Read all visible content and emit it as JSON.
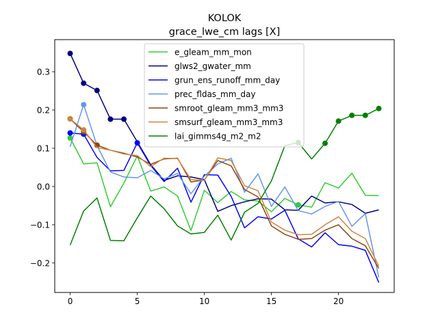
{
  "chart_data": {
    "type": "line",
    "title": "KOLOK",
    "subtitle": "grace_lwe_cm lags [X]",
    "xlabel": "",
    "ylabel": "",
    "xlim": [
      -1.15,
      24.15
    ],
    "ylim": [
      -0.277,
      0.384
    ],
    "xticks": [
      0,
      5,
      10,
      15,
      20
    ],
    "yticks": [
      -0.2,
      -0.1,
      0.0,
      0.1,
      0.2,
      0.3
    ],
    "ytick_labels": [
      "−0.2",
      "−0.1",
      "0.0",
      "0.1",
      "0.2",
      "0.3"
    ],
    "legend_position": "upper center",
    "x": [
      0,
      1,
      2,
      3,
      4,
      5,
      6,
      7,
      8,
      9,
      10,
      11,
      12,
      13,
      14,
      15,
      16,
      17,
      18,
      19,
      20,
      21,
      22,
      23
    ],
    "series": [
      {
        "name": "e_gleam_mm_mon",
        "color": "#32cd32",
        "values": [
          0.127,
          0.059,
          0.062,
          -0.053,
          0.009,
          0.08,
          -0.012,
          -0.001,
          -0.025,
          -0.115,
          -0.01,
          -0.042,
          -0.013,
          -0.035,
          -0.038,
          -0.066,
          -0.031,
          -0.048,
          -0.054,
          0.01,
          -0.004,
          0.035,
          -0.023,
          -0.024
        ],
        "markers": [
          0,
          17
        ]
      },
      {
        "name": "glws2_gwater_mm",
        "color": "#000080",
        "values": [
          0.348,
          0.27,
          0.251,
          0.176,
          0.176,
          0.117,
          0.057,
          0.016,
          0.028,
          0.025,
          0.018,
          -0.065,
          -0.05,
          -0.04,
          -0.032,
          -0.033,
          -0.061,
          -0.062,
          -0.025,
          -0.043,
          -0.04,
          -0.047,
          -0.07,
          -0.061
        ],
        "markers": [
          0,
          1,
          2,
          3,
          4
        ]
      },
      {
        "name": "grun_ens_runoff_mm_day",
        "color": "#0000ff",
        "values": [
          0.14,
          0.137,
          0.076,
          0.041,
          0.042,
          0.114,
          0.055,
          0.013,
          0.048,
          -0.041,
          0.031,
          0.03,
          -0.026,
          -0.108,
          -0.079,
          -0.085,
          -0.062,
          -0.137,
          -0.158,
          -0.121,
          -0.152,
          -0.156,
          -0.167,
          -0.251
        ],
        "markers": [
          0,
          1,
          5
        ]
      },
      {
        "name": "prec_fldas_mm_day",
        "color": "#6495ed",
        "values": [
          0.104,
          0.214,
          0.107,
          0.038,
          0.025,
          0.023,
          0.042,
          0.02,
          0.034,
          -0.019,
          0.027,
          0.059,
          0.074,
          -0.015,
          0.033,
          -0.052,
          -0.001,
          -0.063,
          -0.072,
          -0.052,
          -0.039,
          -0.104,
          -0.071,
          -0.238
        ],
        "markers": [
          1
        ]
      },
      {
        "name": "smroot_gleam_mm3_mm3",
        "color": "#8b4513",
        "values": [
          0.177,
          0.143,
          0.108,
          0.095,
          0.087,
          0.077,
          0.058,
          0.072,
          0.074,
          0.012,
          0.017,
          0.068,
          0.054,
          -0.008,
          -0.027,
          -0.103,
          -0.125,
          -0.138,
          -0.136,
          -0.114,
          -0.1,
          -0.136,
          -0.155,
          -0.214
        ],
        "markers": [
          0,
          1,
          2
        ]
      },
      {
        "name": "smsurf_gleam_mm3_mm3",
        "color": "#cd853f",
        "values": [
          0.177,
          0.148,
          0.102,
          0.095,
          0.085,
          0.081,
          0.052,
          0.074,
          0.073,
          0.018,
          0.016,
          0.075,
          0.068,
          0.002,
          -0.011,
          -0.093,
          -0.114,
          -0.126,
          -0.125,
          -0.1,
          -0.079,
          -0.117,
          -0.136,
          -0.208
        ],
        "markers": [
          0,
          1
        ]
      },
      {
        "name": "lai_gimms4g_m2_m2",
        "color": "#008000",
        "values": [
          -0.153,
          -0.064,
          -0.03,
          -0.141,
          -0.142,
          -0.082,
          -0.025,
          -0.058,
          -0.103,
          -0.124,
          -0.12,
          -0.075,
          -0.14,
          -0.067,
          -0.044,
          0.015,
          0.107,
          0.115,
          0.072,
          0.113,
          0.171,
          0.186,
          0.186,
          0.204
        ],
        "markers": [
          17,
          19,
          20,
          21,
          22,
          23
        ]
      }
    ]
  }
}
